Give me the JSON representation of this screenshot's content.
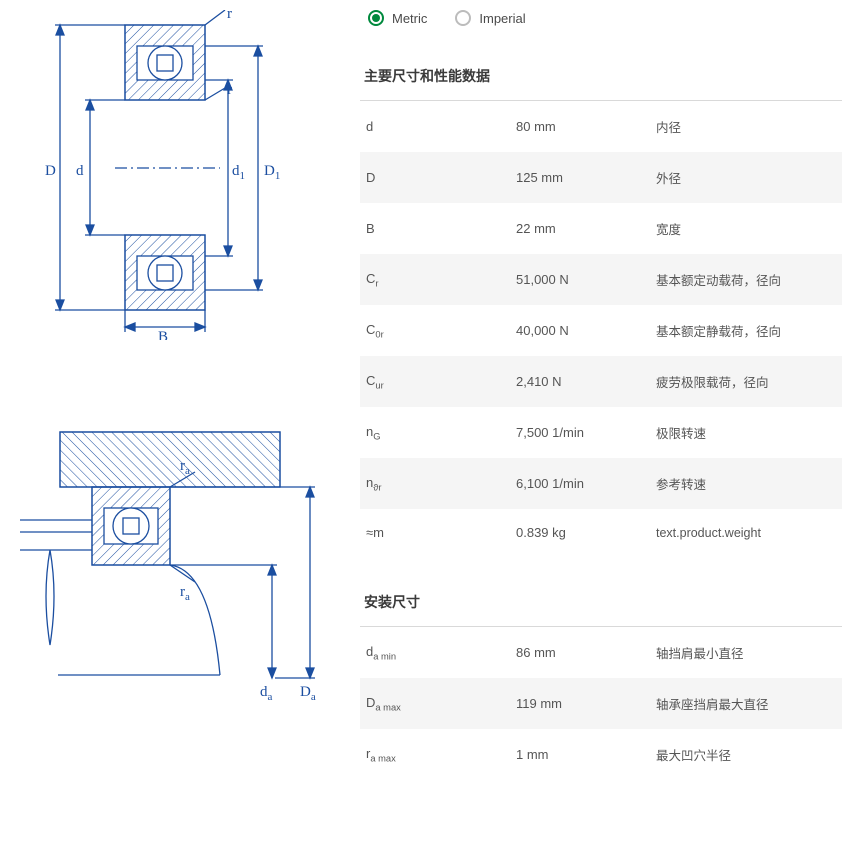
{
  "units": {
    "metric_label": "Metric",
    "imperial_label": "Imperial",
    "selected": "metric",
    "accent_color": "#00893d",
    "unselected_color": "#bcbcbc"
  },
  "colors": {
    "text": "#4a4a4a",
    "row_alt_bg": "#f5f5f5",
    "divider": "#d9d9d9",
    "diagram_line": "#1b4ea0",
    "hatch": "#1b4ea0",
    "background": "#ffffff"
  },
  "diagram_main": {
    "labels": [
      "D",
      "d",
      "d1",
      "D1",
      "r",
      "r",
      "B"
    ],
    "stroke_width": 1.3
  },
  "diagram_mount": {
    "labels": [
      "ra",
      "ra",
      "da",
      "Da"
    ],
    "stroke_width": 1.3
  },
  "sections": [
    {
      "title": "主要尺寸和性能数据",
      "rows": [
        {
          "symbol_html": "d",
          "value": "80 mm",
          "desc": "内径"
        },
        {
          "symbol_html": "D",
          "value": "125 mm",
          "desc": "外径"
        },
        {
          "symbol_html": "B",
          "value": "22 mm",
          "desc": "宽度"
        },
        {
          "symbol_html": "C<sub>r</sub>",
          "value": "51,000 N",
          "desc": "基本额定动载荷，径向"
        },
        {
          "symbol_html": "C<sub>0r</sub>",
          "value": "40,000 N",
          "desc": "基本额定静载荷，径向"
        },
        {
          "symbol_html": "C<sub>ur</sub>",
          "value": "2,410 N",
          "desc": "疲劳极限载荷，径向"
        },
        {
          "symbol_html": "n<sub>G</sub>",
          "value": "7,500 1/min",
          "desc": "极限转速"
        },
        {
          "symbol_html": "n<sub>ϑr</sub>",
          "value": "6,100 1/min",
          "desc": "参考转速"
        },
        {
          "symbol_html": "≈m",
          "value": "0.839 kg",
          "desc": "text.product.weight"
        }
      ]
    },
    {
      "title": "安装尺寸",
      "rows": [
        {
          "symbol_html": "d<sub>a min</sub>",
          "value": "86 mm",
          "desc": "轴挡肩最小直径"
        },
        {
          "symbol_html": "D<sub>a max</sub>",
          "value": "119 mm",
          "desc": "轴承座挡肩最大直径"
        },
        {
          "symbol_html": "r<sub>a max</sub>",
          "value": "1 mm",
          "desc": "最大凹穴半径"
        }
      ]
    }
  ]
}
